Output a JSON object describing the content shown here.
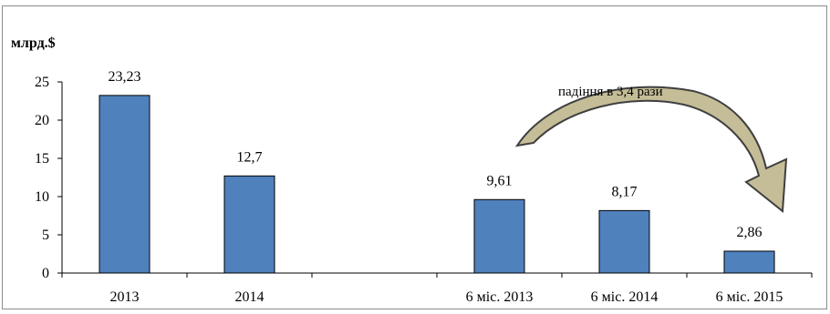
{
  "chart_data": {
    "type": "bar",
    "unit_label": "млрд.$",
    "categories": [
      "2013",
      "2014",
      "",
      "6 міс. 2013",
      "6 міс. 2014",
      "6 міс. 2015"
    ],
    "values": [
      23.23,
      12.7,
      null,
      9.61,
      8.17,
      2.86
    ],
    "data_labels": [
      "23,23",
      "12,7",
      "",
      "9,61",
      "8,17",
      "2,86"
    ],
    "ylim": [
      0,
      25
    ],
    "y_ticks": [
      "0",
      "5",
      "10",
      "15",
      "20",
      "25"
    ],
    "grid": false,
    "colors": {
      "bar": "#4f81bd",
      "bar_edge": "#000000",
      "arrow_fill": "#c4bd97",
      "arrow_edge": "#3f3f3f"
    },
    "annotation": {
      "text": "падіння в 3,4 рази",
      "from_category": "6 міс. 2013",
      "to_category": "6 міс. 2015"
    }
  }
}
